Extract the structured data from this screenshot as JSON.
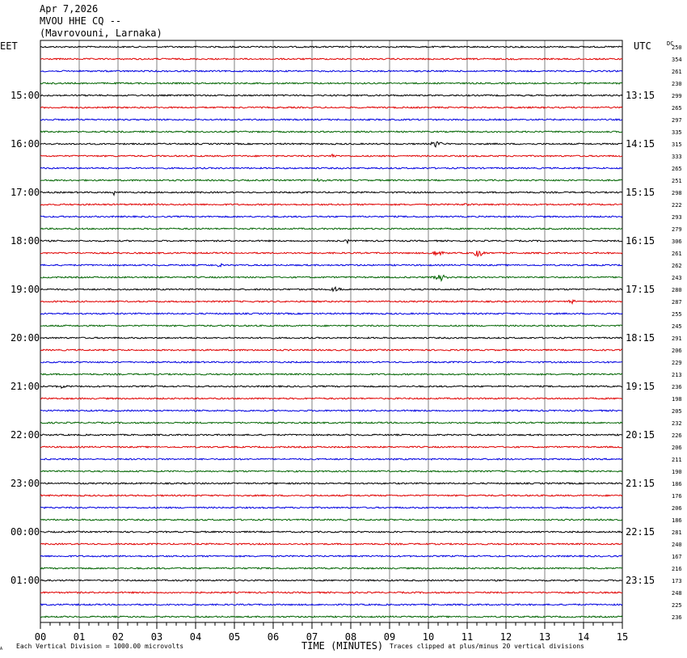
{
  "header": {
    "date": "Apr 7,2026",
    "station": "MVOU HHE CQ --",
    "location": "(Mavrovouni, Larnaka)"
  },
  "left_tz": "EET",
  "right_tz": "UTC",
  "dc_label": "DC",
  "footer": {
    "scale_note": "Each Vertical Division = 1000.00 microvolts",
    "xaxis_title": "TIME (MINUTES)",
    "clip_note": "Traces clipped at plus/minus 20 vertical divisions",
    "corner_mark": "A"
  },
  "colors": {
    "trace_cycle": [
      "#000000",
      "#e00000",
      "#0000e0",
      "#006400"
    ],
    "grid": "#808080"
  },
  "chart_data": {
    "type": "line",
    "title": "MVOU HHE CQ --",
    "xlabel": "TIME (MINUTES)",
    "xlim": [
      0,
      15
    ],
    "x_tick_labels": [
      "00",
      "01",
      "02",
      "03",
      "04",
      "05",
      "06",
      "07",
      "08",
      "09",
      "10",
      "11",
      "12",
      "13",
      "14",
      "15"
    ],
    "trace_count": 48,
    "minutes_per_trace": 15,
    "left_hour_labels": [
      {
        "trace": 4,
        "label": "15:00"
      },
      {
        "trace": 8,
        "label": "16:00"
      },
      {
        "trace": 12,
        "label": "17:00"
      },
      {
        "trace": 16,
        "label": "18:00"
      },
      {
        "trace": 20,
        "label": "19:00"
      },
      {
        "trace": 24,
        "label": "20:00"
      },
      {
        "trace": 28,
        "label": "21:00"
      },
      {
        "trace": 32,
        "label": "22:00"
      },
      {
        "trace": 36,
        "label": "23:00"
      },
      {
        "trace": 40,
        "label": "00:00"
      },
      {
        "trace": 44,
        "label": "01:00"
      }
    ],
    "right_hour_labels": [
      {
        "trace": 4,
        "label": "13:15"
      },
      {
        "trace": 8,
        "label": "14:15"
      },
      {
        "trace": 12,
        "label": "15:15"
      },
      {
        "trace": 16,
        "label": "16:15"
      },
      {
        "trace": 20,
        "label": "17:15"
      },
      {
        "trace": 24,
        "label": "18:15"
      },
      {
        "trace": 28,
        "label": "19:15"
      },
      {
        "trace": 32,
        "label": "20:15"
      },
      {
        "trace": 36,
        "label": "21:15"
      },
      {
        "trace": 40,
        "label": "22:15"
      },
      {
        "trace": 44,
        "label": "23:15"
      }
    ],
    "dc_offsets": [
      250,
      354,
      261,
      230,
      299,
      265,
      297,
      335,
      315,
      333,
      265,
      251,
      298,
      222,
      293,
      279,
      306,
      261,
      262,
      243,
      280,
      287,
      255,
      245,
      291,
      206,
      229,
      213,
      236,
      198,
      205,
      232,
      226,
      206,
      211,
      190,
      186,
      176,
      206,
      186,
      281,
      240,
      167,
      216,
      173,
      248,
      225,
      236
    ],
    "events": [
      {
        "trace": 8,
        "minute": 10.2,
        "amp": 7
      },
      {
        "trace": 9,
        "minute": 7.5,
        "amp": 3
      },
      {
        "trace": 10,
        "minute": 2.6,
        "amp": 2
      },
      {
        "trace": 11,
        "minute": 7.2,
        "amp": 3
      },
      {
        "trace": 12,
        "minute": 1.9,
        "amp": 3
      },
      {
        "trace": 13,
        "minute": 11.0,
        "amp": 2
      },
      {
        "trace": 16,
        "minute": 7.9,
        "amp": 3
      },
      {
        "trace": 17,
        "minute": 10.2,
        "amp": 6
      },
      {
        "trace": 17,
        "minute": 11.3,
        "amp": 7
      },
      {
        "trace": 18,
        "minute": 4.6,
        "amp": 3
      },
      {
        "trace": 19,
        "minute": 10.3,
        "amp": 8
      },
      {
        "trace": 20,
        "minute": 7.6,
        "amp": 4
      },
      {
        "trace": 21,
        "minute": 13.7,
        "amp": 3
      },
      {
        "trace": 28,
        "minute": 0.55,
        "amp": 4
      }
    ]
  }
}
